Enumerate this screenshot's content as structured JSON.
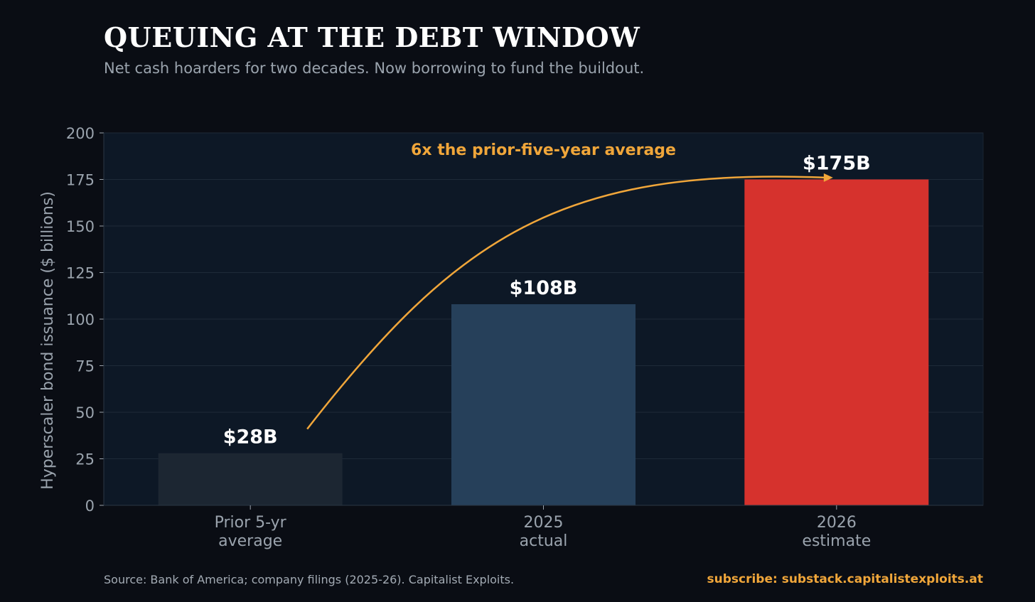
{
  "header": {
    "title": "QUEUING AT THE DEBT WINDOW",
    "subtitle": "Net cash hoarders for two decades. Now borrowing to fund the buildout."
  },
  "footer": {
    "source": "Source: Bank of America; company filings (2025-26).  Capitalist Exploits.",
    "subscribe": "subscribe: substack.capitalistexploits.at"
  },
  "chart_data": {
    "type": "bar",
    "title": "QUEUING AT THE DEBT WINDOW",
    "subtitle": "Net cash hoarders for two decades. Now borrowing to fund the buildout.",
    "ylabel": "Hyperscaler bond issuance  ($ billions)",
    "xlabel": "",
    "ylim": [
      0,
      200
    ],
    "yticks": [
      0,
      25,
      50,
      75,
      100,
      125,
      150,
      175,
      200
    ],
    "grid": true,
    "categories": [
      [
        "Prior 5-yr",
        "average"
      ],
      [
        "2025",
        "actual"
      ],
      [
        "2026",
        "estimate"
      ]
    ],
    "values": [
      28,
      108,
      175
    ],
    "data_labels": [
      "$28B",
      "$108B",
      "$175B"
    ],
    "bar_colors": [
      "#1c2632",
      "#26405a",
      "#d6322d"
    ],
    "annotation": {
      "text": "6x the prior-five-year average",
      "color": "#f0a63a",
      "arrow_from": {
        "category_index": 0,
        "value": 41
      },
      "arrow_to": {
        "category_index": 2,
        "value": 176
      }
    }
  },
  "colors": {
    "background": "#0a0d14",
    "plot_background": "#0d1826",
    "gridline": "#1e2a38",
    "axis_text": "#9aa3ad",
    "accent": "#f0a63a",
    "label_text": "#ffffff"
  }
}
